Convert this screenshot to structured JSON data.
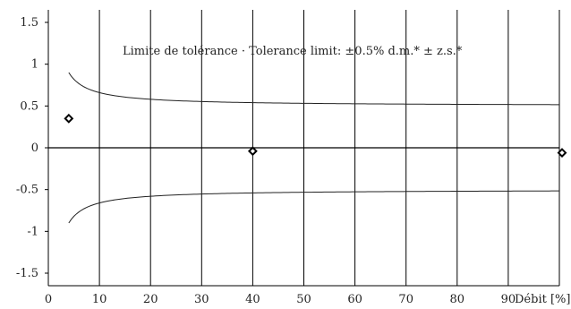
{
  "chart_data": {
    "type": "scatter",
    "xlabel": "Débit [%]",
    "ylabel": "",
    "xlim": [
      0,
      100
    ],
    "ylim": [
      -1.65,
      1.65
    ],
    "x_ticks": [
      0,
      10,
      20,
      30,
      40,
      50,
      60,
      70,
      80,
      90
    ],
    "y_ticks": [
      1.5,
      1,
      0.5,
      0,
      -0.5,
      -1,
      -1.5
    ],
    "x_tick_labels": [
      "0",
      "10",
      "20",
      "30",
      "40",
      "50",
      "60",
      "70",
      "80",
      "90"
    ],
    "y_tick_labels": [
      "1.5",
      "1",
      "0.5",
      "0",
      "-0.5",
      "-1",
      "-1.5"
    ],
    "grid": "vertical",
    "annotation": "Limite de tolérance · Tolerance limit: ±0.5% d.m.* ± z.s.*",
    "tolerance": {
      "base_percent": 0.5,
      "zero_stability_percent_of_rate": 0.16,
      "x_start": 4,
      "x_end": 100
    },
    "series": [
      {
        "points": [
          {
            "x": 4,
            "y": 0.35
          },
          {
            "x": 40,
            "y": -0.04
          },
          {
            "x": 101,
            "y": -0.06
          }
        ]
      }
    ]
  }
}
